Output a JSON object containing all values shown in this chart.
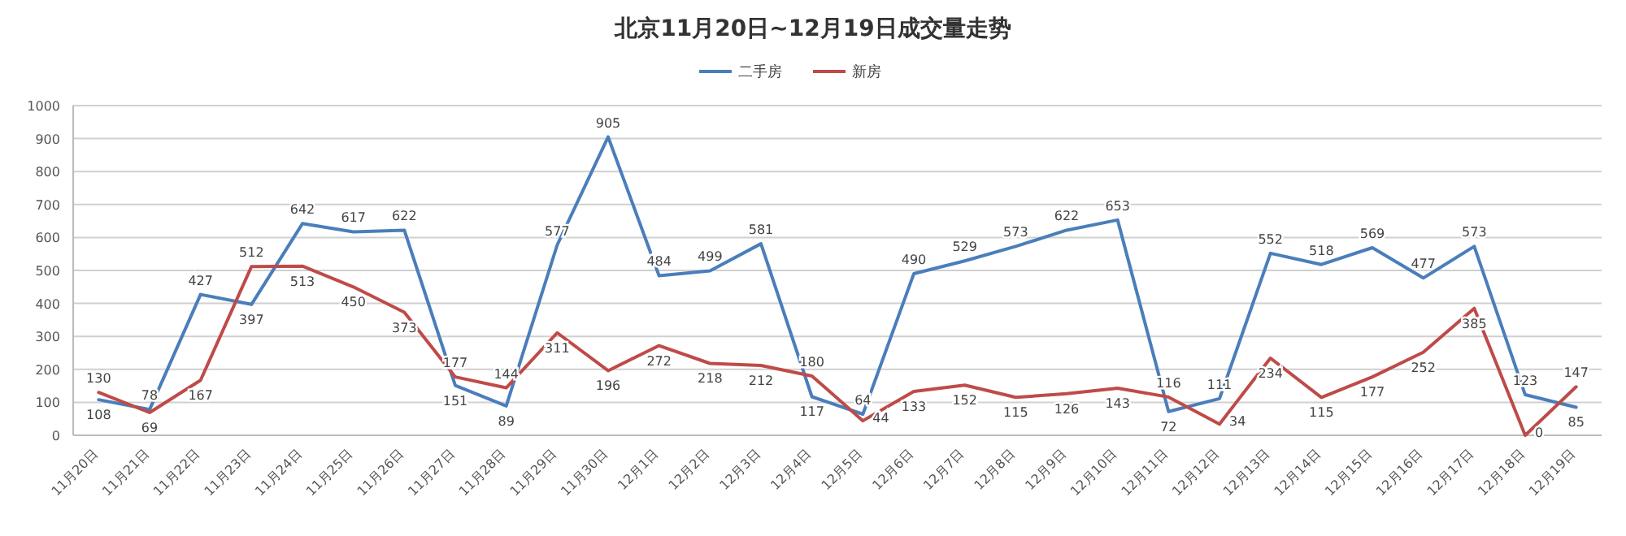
{
  "chart_data": {
    "type": "line",
    "title": "北京11月20日~12月19日成交量走势",
    "categories": [
      "11月20日",
      "11月21日",
      "11月22日",
      "11月23日",
      "11月24日",
      "11月25日",
      "11月26日",
      "11月27日",
      "11月28日",
      "11月29日",
      "11月30日",
      "12月1日",
      "12月2日",
      "12月3日",
      "12月4日",
      "12月5日",
      "12月6日",
      "12月7日",
      "12月8日",
      "12月9日",
      "12月10日",
      "12月11日",
      "12月12日",
      "12月13日",
      "12月14日",
      "12月15日",
      "12月16日",
      "12月17日",
      "12月18日",
      "12月19日"
    ],
    "series": [
      {
        "name": "二手房",
        "color": "#4a7ebb",
        "values": [
          108,
          78,
          427,
          397,
          642,
          617,
          622,
          151,
          89,
          577,
          905,
          484,
          499,
          581,
          117,
          64,
          490,
          529,
          573,
          622,
          653,
          72,
          111,
          552,
          518,
          569,
          477,
          573,
          123,
          85
        ]
      },
      {
        "name": "新房",
        "color": "#be4b48",
        "values": [
          130,
          69,
          167,
          512,
          513,
          450,
          373,
          177,
          144,
          311,
          196,
          272,
          218,
          212,
          180,
          44,
          133,
          152,
          115,
          126,
          143,
          116,
          34,
          234,
          115,
          177,
          252,
          385,
          0,
          147
        ]
      }
    ],
    "ylim": [
      0,
      1000
    ],
    "yticks": [
      0,
      100,
      200,
      300,
      400,
      500,
      600,
      700,
      800,
      900,
      1000
    ],
    "grid": "y",
    "legend": "top",
    "data_labels": true,
    "marker": "none",
    "line_style": "solid"
  }
}
